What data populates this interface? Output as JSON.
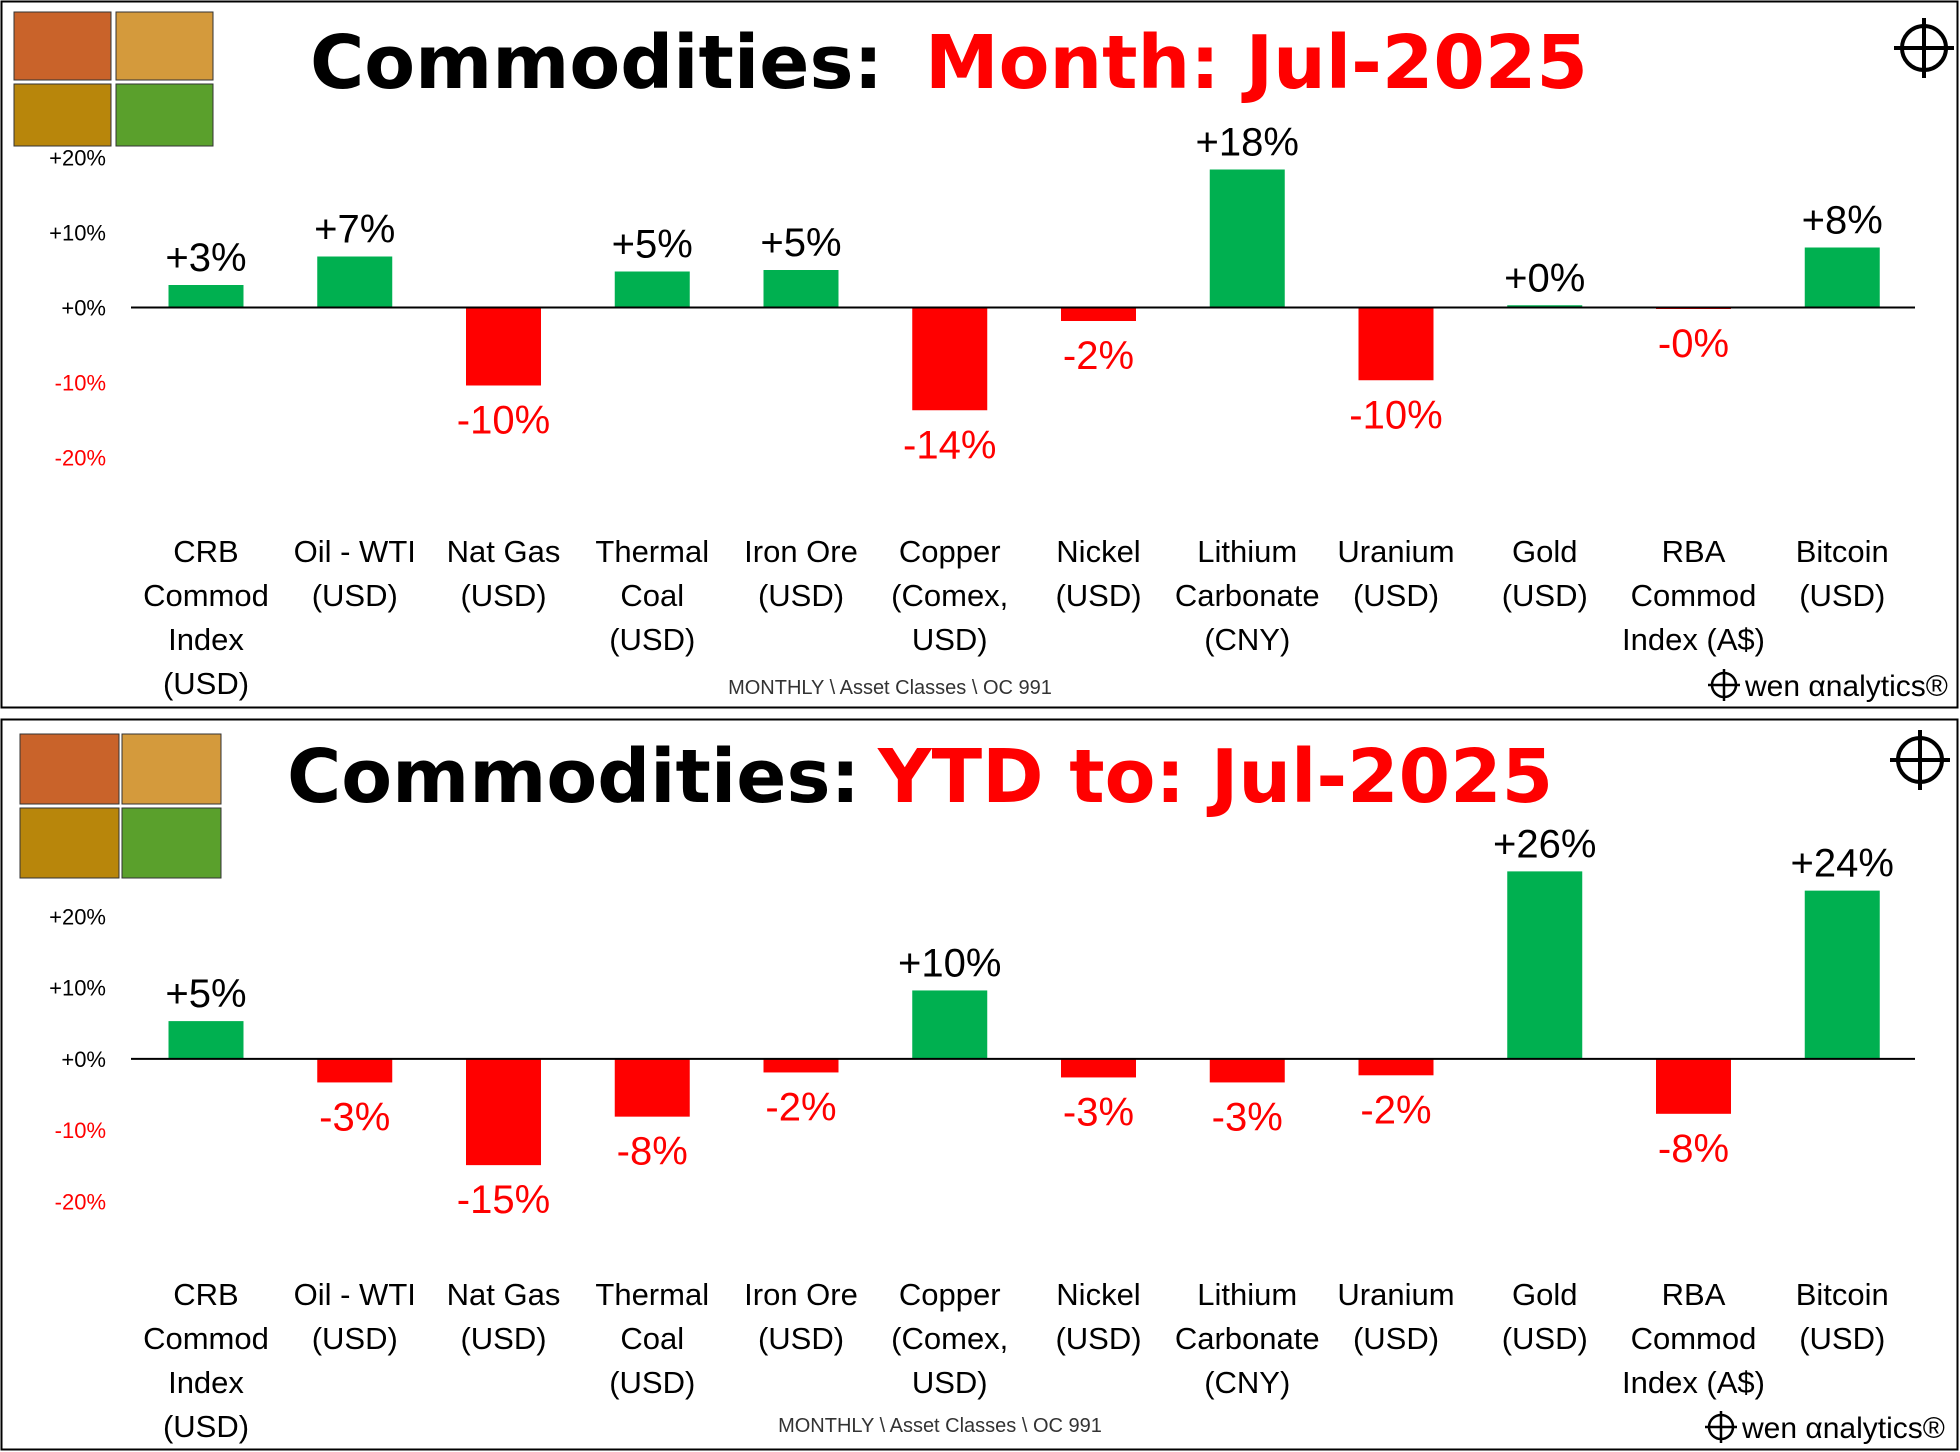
{
  "chart_data": [
    {
      "type": "bar",
      "title": "Commodities:",
      "subtitle": "Month:  Jul-2025",
      "categories": [
        "CRB\nCommod\nIndex\n(USD)",
        "Oil - WTI\n(USD)",
        "Nat Gas\n(USD)",
        "Thermal\nCoal\n(USD)",
        "Iron Ore\n(USD)",
        "Copper\n(Comex,\nUSD)",
        "Nickel\n(USD)",
        "Lithium\nCarbonate\n(CNY)",
        "Uranium\n(USD)",
        "Gold\n(USD)",
        "RBA\nCommod\nIndex (A$)",
        "Bitcoin\n(USD)"
      ],
      "values": [
        3.0,
        6.8,
        -10.4,
        4.8,
        5.0,
        -13.7,
        -1.8,
        18.4,
        -9.7,
        0.3,
        -0.2,
        8.0
      ],
      "value_labels": [
        "+3%",
        "+7%",
        "-10%",
        "+5%",
        "+5%",
        "-14%",
        "-2%",
        "+18%",
        "-10%",
        "+0%",
        "-0%",
        "+8%"
      ],
      "ylim": [
        -20,
        20
      ],
      "yticks": [
        {
          "value": 20,
          "label": "+20%"
        },
        {
          "value": 10,
          "label": "+10%"
        },
        {
          "value": 0,
          "label": "+0%"
        },
        {
          "value": -10,
          "label": "-10%"
        },
        {
          "value": -20,
          "label": "-20%"
        }
      ],
      "positive_color": "#00b050",
      "negative_color": "#ff0000",
      "footer": "MONTHLY \\ Asset Classes \\ OC 991",
      "logo": "wen αnalytics®"
    },
    {
      "type": "bar",
      "title": "Commodities:",
      "subtitle": "YTD to:  Jul-2025",
      "categories": [
        "CRB\nCommod\nIndex\n(USD)",
        "Oil - WTI\n(USD)",
        "Nat Gas\n(USD)",
        "Thermal\nCoal\n(USD)",
        "Iron Ore\n(USD)",
        "Copper\n(Comex,\nUSD)",
        "Nickel\n(USD)",
        "Lithium\nCarbonate\n(CNY)",
        "Uranium\n(USD)",
        "Gold\n(USD)",
        "RBA\nCommod\nIndex (A$)",
        "Bitcoin\n(USD)"
      ],
      "values": [
        5.3,
        -3.3,
        -14.9,
        -8.1,
        -1.9,
        9.6,
        -2.6,
        -3.3,
        -2.3,
        26.3,
        -7.7,
        23.6
      ],
      "value_labels": [
        "+5%",
        "-3%",
        "-15%",
        "-8%",
        "-2%",
        "+10%",
        "-3%",
        "-3%",
        "-2%",
        "+26%",
        "-8%",
        "+24%"
      ],
      "ylim": [
        -20,
        30
      ],
      "yticks": [
        {
          "value": 20,
          "label": "+20%"
        },
        {
          "value": 10,
          "label": "+10%"
        },
        {
          "value": 0,
          "label": "+0%"
        },
        {
          "value": -10,
          "label": "-10%"
        },
        {
          "value": -20,
          "label": "-20%"
        }
      ],
      "positive_color": "#00b050",
      "negative_color": "#ff0000",
      "footer": "MONTHLY \\ Asset Classes \\ OC 991",
      "logo": "wen αnalytics®"
    }
  ]
}
